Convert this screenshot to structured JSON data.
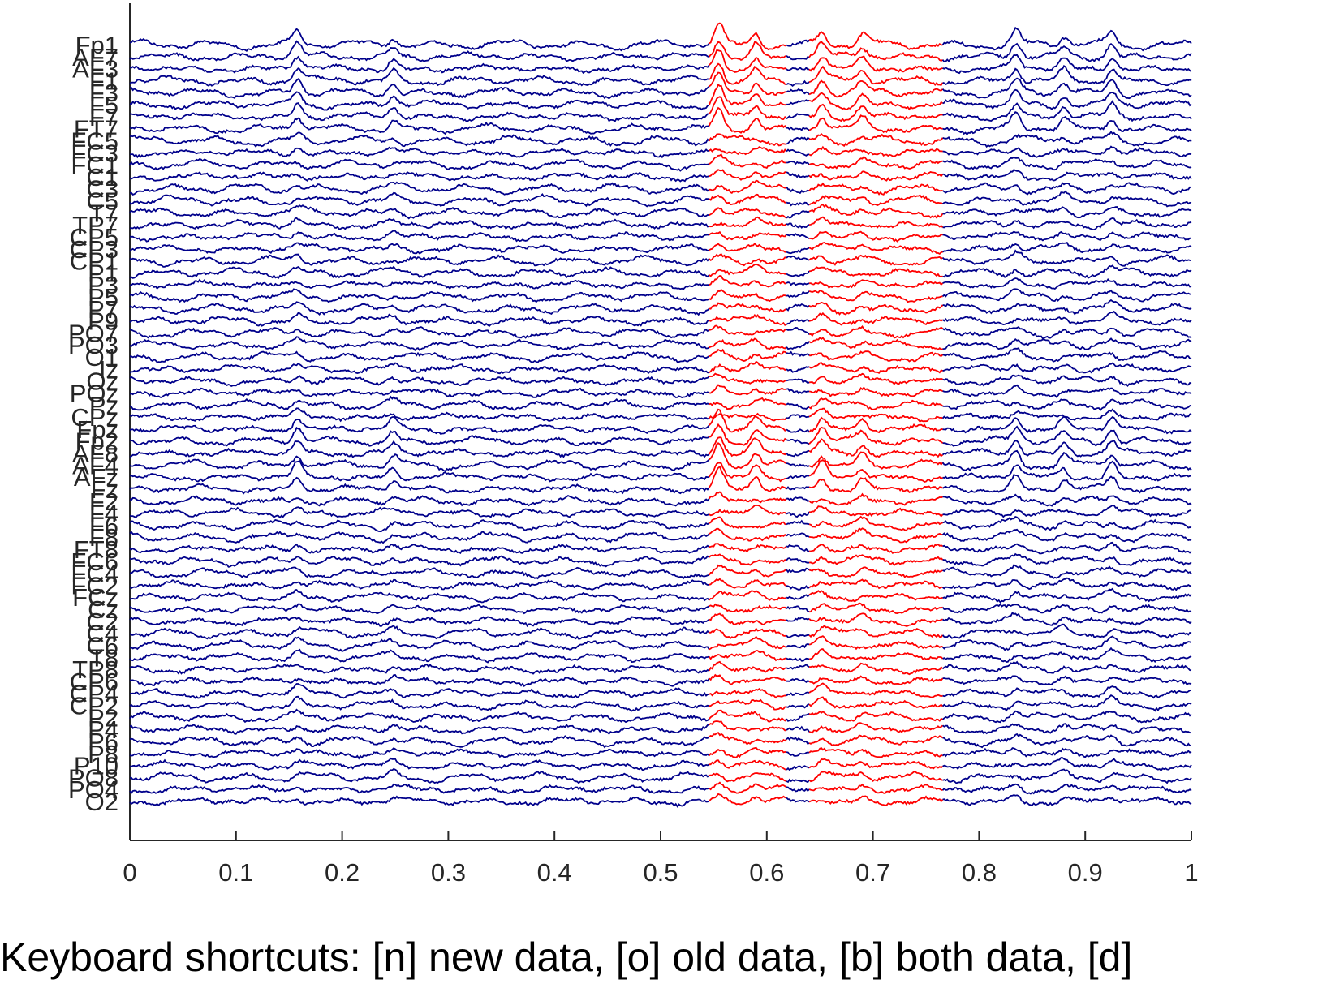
{
  "chart_data": {
    "type": "line",
    "title": "",
    "xlabel": "",
    "ylabel": "",
    "xlim": [
      0,
      1
    ],
    "x_ticks": [
      0,
      0.1,
      0.2,
      0.3,
      0.4,
      0.5,
      0.6,
      0.7,
      0.8,
      0.9,
      1
    ],
    "x_tick_labels": [
      "0",
      "0.1",
      "0.2",
      "0.3",
      "0.4",
      "0.5",
      "0.6",
      "0.7",
      "0.8",
      "0.9",
      "1"
    ],
    "channels": [
      "Fp1",
      "AF7",
      "AF3",
      "F1",
      "F3",
      "F5",
      "F7",
      "FT7",
      "FC5",
      "FC3",
      "FC1",
      "C1",
      "C3",
      "C5",
      "T7",
      "TP7",
      "CP5",
      "CP3",
      "CP1",
      "P1",
      "P3",
      "P5",
      "P7",
      "P9",
      "PO7",
      "PO3",
      "O1",
      "Iz",
      "Oz",
      "POz",
      "Pz",
      "CPz",
      "Fpz",
      "Fp2",
      "AF8",
      "AF4",
      "AFz",
      "Fz",
      "F2",
      "F4",
      "F6",
      "F8",
      "FT8",
      "FC6",
      "FC4",
      "FC2",
      "FCz",
      "Cz",
      "C2",
      "C4",
      "C6",
      "T8",
      "TP8",
      "CP6",
      "CP4",
      "CP2",
      "P2",
      "P4",
      "P6",
      "P8",
      "P10",
      "PO8",
      "PO4",
      "O2"
    ],
    "series": [
      {
        "name": "",
        "color": "#00008b",
        "values": "EEG traces, one per channel, full time range"
      },
      {
        "name": "",
        "color": "#ff0000",
        "x_ranges": [
          [
            0.545,
            0.618
          ],
          [
            0.64,
            0.765
          ]
        ]
      }
    ],
    "peaks": [
      0.158,
      0.248,
      0.555,
      0.59,
      0.652,
      0.69,
      0.835,
      0.88,
      0.925
    ],
    "grid": false,
    "legend": "none"
  },
  "colors": {
    "axis": "#262626",
    "trace_normal": "#00008b",
    "trace_highlight": "#ff0000",
    "background": "#ffffff"
  },
  "footer": {
    "shortcuts": "Keyboard shortcuts: [n] new data, [o] old data, [b] both data, [d]"
  }
}
